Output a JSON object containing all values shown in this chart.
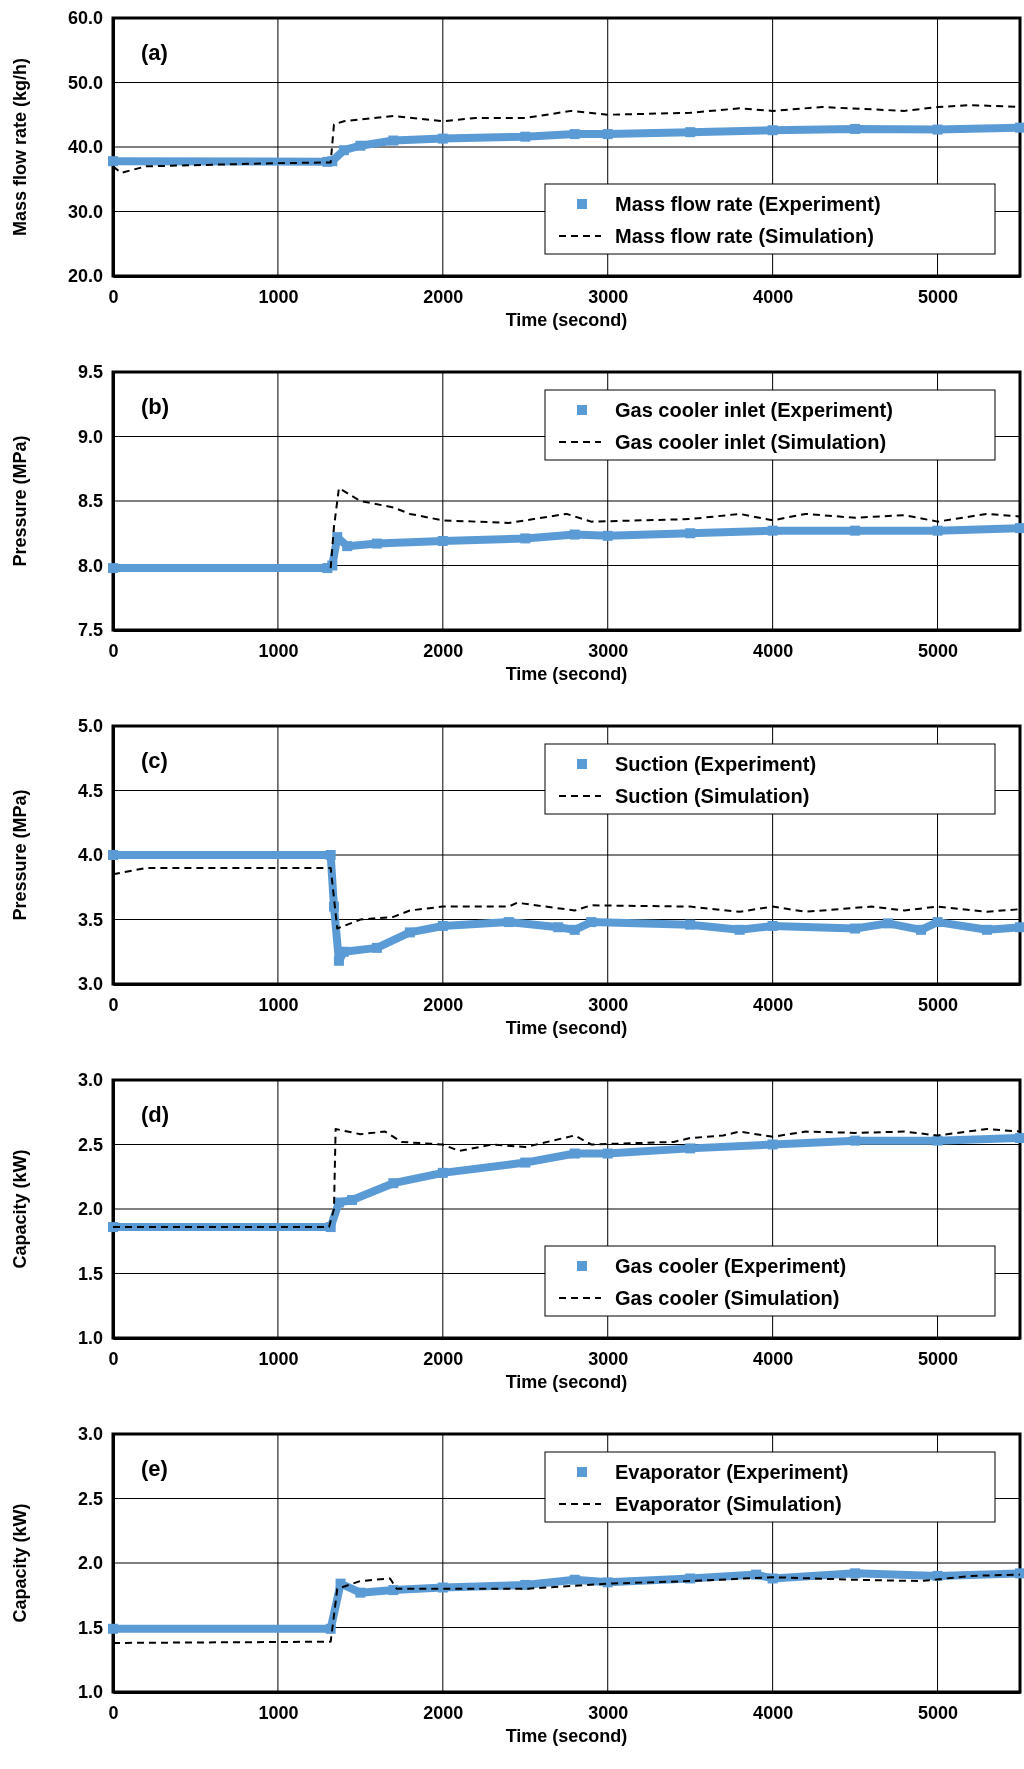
{
  "chart_data": [
    {
      "type": "line",
      "xlabel": "Time (second)",
      "ylabel": "Mass flow rate (kg/h)",
      "annotations": [
        "(a)"
      ],
      "xlim": [
        0,
        5500
      ],
      "xticks": [
        0,
        1000,
        2000,
        3000,
        4000,
        5000
      ],
      "ylim": [
        20,
        60
      ],
      "yticks": [
        {
          "value": 20,
          "label": "20.0"
        },
        {
          "value": 30,
          "label": "30.0"
        },
        {
          "value": 40,
          "label": "40.0"
        },
        {
          "value": 50,
          "label": "50.0"
        },
        {
          "value": 60,
          "label": "60.0"
        }
      ],
      "grid": true,
      "legend": "bottom right",
      "series": [
        {
          "name": "Mass flow rate (Experiment)",
          "color": "#5b9bd5",
          "marker": "square",
          "x": [
            0,
            1300,
            1330,
            1400,
            1500,
            1700,
            2000,
            2500,
            2800,
            3000,
            3500,
            4000,
            4500,
            5000,
            5500
          ],
          "values": [
            37.8,
            37.7,
            37.8,
            39.5,
            40.2,
            41,
            41.3,
            41.6,
            42,
            42,
            42.3,
            42.6,
            42.8,
            42.7,
            43
          ]
        },
        {
          "name": "Mass flow rate (Simulation)",
          "color": "#000000",
          "line_style": "dashed",
          "x": [
            0,
            50,
            200,
            1000,
            1320,
            1340,
            1400,
            1700,
            2000,
            2200,
            2500,
            2780,
            3000,
            3500,
            3800,
            4000,
            4300,
            4800,
            5000,
            5200,
            5500
          ],
          "values": [
            37,
            36,
            37,
            37.5,
            37.6,
            43.5,
            44,
            44.8,
            44,
            44.5,
            44.5,
            45.6,
            45,
            45.3,
            46,
            45.6,
            46.2,
            45.6,
            46.2,
            46.5,
            46.2
          ]
        }
      ]
    },
    {
      "type": "line",
      "xlabel": "Time (second)",
      "ylabel": "Pressure (MPa)",
      "annotations": [
        "(b)"
      ],
      "xlim": [
        0,
        5500
      ],
      "xticks": [
        0,
        1000,
        2000,
        3000,
        4000,
        5000
      ],
      "ylim": [
        7.5,
        9.5
      ],
      "yticks": [
        {
          "value": 7.5,
          "label": "7.5"
        },
        {
          "value": 8,
          "label": "8.0"
        },
        {
          "value": 8.5,
          "label": "8.5"
        },
        {
          "value": 9,
          "label": "9.0"
        },
        {
          "value": 9.5,
          "label": "9.5"
        }
      ],
      "grid": true,
      "legend": "top right",
      "series": [
        {
          "name": "Gas cooler inlet (Experiment)",
          "color": "#5b9bd5",
          "marker": "square",
          "x": [
            0,
            1300,
            1330,
            1360,
            1420,
            1600,
            2000,
            2500,
            2800,
            3000,
            3500,
            4000,
            4500,
            5000,
            5500
          ],
          "values": [
            7.98,
            7.98,
            8.0,
            8.22,
            8.15,
            8.17,
            8.19,
            8.21,
            8.24,
            8.23,
            8.25,
            8.27,
            8.27,
            8.27,
            8.29
          ]
        },
        {
          "name": "Gas cooler inlet (Simulation)",
          "color": "#000000",
          "line_style": "dashed",
          "x": [
            1320,
            1340,
            1370,
            1500,
            1700,
            1800,
            2000,
            2400,
            2750,
            2900,
            3500,
            3800,
            4000,
            4200,
            4500,
            4800,
            5000,
            5300,
            5500
          ],
          "values": [
            7.98,
            8.3,
            8.6,
            8.5,
            8.45,
            8.4,
            8.35,
            8.33,
            8.4,
            8.34,
            8.36,
            8.4,
            8.35,
            8.4,
            8.37,
            8.39,
            8.34,
            8.4,
            8.38
          ]
        }
      ]
    },
    {
      "type": "line",
      "xlabel": "Time (second)",
      "ylabel": "Pressure (MPa)",
      "annotations": [
        "(c)"
      ],
      "xlim": [
        0,
        5500
      ],
      "xticks": [
        0,
        1000,
        2000,
        3000,
        4000,
        5000
      ],
      "ylim": [
        3,
        5
      ],
      "yticks": [
        {
          "value": 3,
          "label": "3.0"
        },
        {
          "value": 3.5,
          "label": "3.5"
        },
        {
          "value": 4,
          "label": "4.0"
        },
        {
          "value": 4.5,
          "label": "4.5"
        },
        {
          "value": 5,
          "label": "5.0"
        }
      ],
      "grid": true,
      "legend": "top right",
      "series": [
        {
          "name": "Suction (Experiment)",
          "color": "#5b9bd5",
          "marker": "square",
          "x": [
            0,
            1320,
            1340,
            1370,
            1400,
            1600,
            1800,
            2000,
            2400,
            2700,
            2800,
            2900,
            3500,
            3800,
            4000,
            4500,
            4700,
            4900,
            5000,
            5300,
            5500
          ],
          "values": [
            4.0,
            4.0,
            3.6,
            3.18,
            3.25,
            3.28,
            3.4,
            3.45,
            3.48,
            3.44,
            3.42,
            3.48,
            3.46,
            3.42,
            3.45,
            3.43,
            3.47,
            3.42,
            3.48,
            3.42,
            3.44
          ]
        },
        {
          "name": "Suction (Simulation)",
          "color": "#000000",
          "line_style": "dashed",
          "x": [
            0,
            200,
            1320,
            1360,
            1500,
            1700,
            1800,
            2000,
            2400,
            2450,
            2800,
            2900,
            3500,
            3800,
            4000,
            4200,
            4600,
            4800,
            5000,
            5300,
            5500
          ],
          "values": [
            3.85,
            3.9,
            3.9,
            3.43,
            3.5,
            3.52,
            3.57,
            3.6,
            3.6,
            3.63,
            3.57,
            3.61,
            3.6,
            3.56,
            3.6,
            3.56,
            3.6,
            3.57,
            3.6,
            3.56,
            3.58
          ]
        }
      ]
    },
    {
      "type": "line",
      "xlabel": "Time (second)",
      "ylabel": "Capacity (kW)",
      "annotations": [
        "(d)"
      ],
      "xlim": [
        0,
        5500
      ],
      "xticks": [
        0,
        1000,
        2000,
        3000,
        4000,
        5000
      ],
      "ylim": [
        1,
        3
      ],
      "yticks": [
        {
          "value": 1,
          "label": "1.0"
        },
        {
          "value": 1.5,
          "label": "1.5"
        },
        {
          "value": 2,
          "label": "2.0"
        },
        {
          "value": 2.5,
          "label": "2.5"
        },
        {
          "value": 3,
          "label": "3.0"
        }
      ],
      "grid": true,
      "legend": "bottom right",
      "series": [
        {
          "name": "Gas cooler (Experiment)",
          "color": "#5b9bd5",
          "marker": "square",
          "x": [
            0,
            1320,
            1370,
            1450,
            1700,
            2000,
            2500,
            2800,
            3000,
            3500,
            4000,
            4500,
            5000,
            5500
          ],
          "values": [
            1.86,
            1.86,
            2.05,
            2.07,
            2.2,
            2.28,
            2.36,
            2.43,
            2.43,
            2.47,
            2.5,
            2.53,
            2.53,
            2.55
          ]
        },
        {
          "name": "Gas cooler (Simulation)",
          "color": "#000000",
          "line_style": "dashed",
          "x": [
            0,
            1310,
            1340,
            1350,
            1500,
            1650,
            1750,
            2000,
            2100,
            2300,
            2500,
            2800,
            2900,
            3400,
            3500,
            3700,
            3800,
            4000,
            4200,
            4500,
            4800,
            5000,
            5300,
            5500
          ],
          "values": [
            1.86,
            1.86,
            2.0,
            2.62,
            2.58,
            2.6,
            2.52,
            2.5,
            2.45,
            2.5,
            2.48,
            2.57,
            2.5,
            2.52,
            2.55,
            2.57,
            2.6,
            2.56,
            2.6,
            2.59,
            2.6,
            2.57,
            2.62,
            2.6
          ]
        }
      ]
    },
    {
      "type": "line",
      "xlabel": "Time (second)",
      "ylabel": "Capacity (kW)",
      "annotations": [
        "(e)"
      ],
      "xlim": [
        0,
        5500
      ],
      "xticks": [
        0,
        1000,
        2000,
        3000,
        4000,
        5000
      ],
      "ylim": [
        1,
        3
      ],
      "yticks": [
        {
          "value": 1,
          "label": "1.0"
        },
        {
          "value": 1.5,
          "label": "1.5"
        },
        {
          "value": 2,
          "label": "2.0"
        },
        {
          "value": 2.5,
          "label": "2.5"
        },
        {
          "value": 3,
          "label": "3.0"
        }
      ],
      "grid": true,
      "legend": "top right",
      "series": [
        {
          "name": "Evaporator (Experiment)",
          "color": "#5b9bd5",
          "marker": "square",
          "x": [
            0,
            1320,
            1380,
            1500,
            1700,
            2000,
            2500,
            2800,
            3000,
            3500,
            3900,
            4000,
            4500,
            5000,
            5500
          ],
          "values": [
            1.49,
            1.49,
            1.84,
            1.77,
            1.79,
            1.81,
            1.83,
            1.87,
            1.85,
            1.88,
            1.91,
            1.88,
            1.92,
            1.9,
            1.92
          ]
        },
        {
          "name": "Evaporator (Simulation)",
          "color": "#000000",
          "line_style": "dashed",
          "x": [
            0,
            1320,
            1360,
            1500,
            1680,
            1720,
            2000,
            2500,
            3000,
            3500,
            4000,
            4500,
            4900,
            5200,
            5500
          ],
          "values": [
            1.38,
            1.39,
            1.8,
            1.86,
            1.88,
            1.8,
            1.8,
            1.8,
            1.84,
            1.86,
            1.89,
            1.87,
            1.86,
            1.9,
            1.91
          ]
        }
      ]
    }
  ]
}
